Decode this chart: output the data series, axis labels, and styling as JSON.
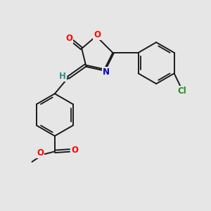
{
  "bg_color": "#e6e6e6",
  "bond_color": "#1a1a1a",
  "bond_width": 1.4,
  "dbo": 0.07,
  "atom_colors": {
    "O": "#ff0000",
    "N": "#0000cd",
    "Cl": "#228b22",
    "H": "#2e8b8b",
    "C": "#1a1a1a"
  },
  "fs": 8.5
}
